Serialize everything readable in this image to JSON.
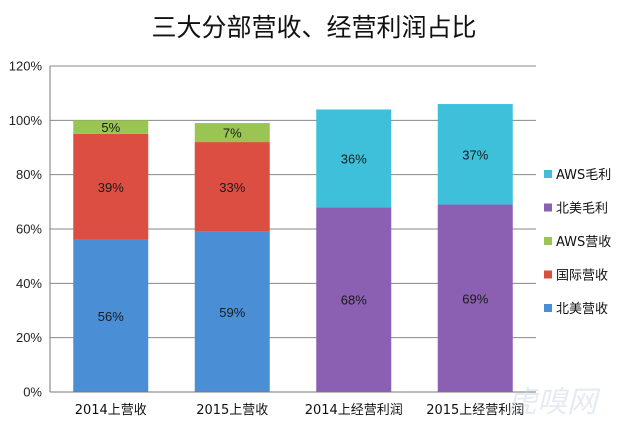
{
  "chart_data": {
    "type": "bar",
    "stacked": true,
    "title": "三大分部营收、经营利润占比",
    "categories": [
      "2014上营收",
      "2015上营收",
      "2014上经营利润",
      "2015上经营利润"
    ],
    "ylim": [
      0,
      120
    ],
    "yticks": [
      0,
      20,
      40,
      60,
      80,
      100,
      120
    ],
    "ytick_labels": [
      "0%",
      "20%",
      "40%",
      "60%",
      "80%",
      "100%",
      "120%"
    ],
    "grid": true,
    "legend_position": "right",
    "series": [
      {
        "name": "北美营收",
        "color": "#4a8fd6",
        "values": [
          56,
          59,
          null,
          null
        ],
        "labels": [
          "56%",
          "59%",
          "",
          ""
        ]
      },
      {
        "name": "国际营收",
        "color": "#db4e41",
        "values": [
          39,
          33,
          null,
          null
        ],
        "labels": [
          "39%",
          "33%",
          "",
          ""
        ]
      },
      {
        "name": "AWS营收",
        "color": "#9bc553",
        "values": [
          5,
          7,
          null,
          null
        ],
        "labels": [
          "5%",
          "7%",
          "",
          ""
        ]
      },
      {
        "name": "北美毛利",
        "color": "#8b5fb2",
        "values": [
          null,
          null,
          68,
          69
        ],
        "labels": [
          "",
          "",
          "68%",
          "69%"
        ]
      },
      {
        "name": "AWS毛利",
        "color": "#3ec0da",
        "values": [
          null,
          null,
          36,
          37
        ],
        "labels": [
          "",
          "",
          "36%",
          "37%"
        ]
      }
    ],
    "legend_order": [
      "AWS毛利",
      "北美毛利",
      "AWS营收",
      "国际营收",
      "北美营收"
    ]
  },
  "watermark": "虎嗅网"
}
